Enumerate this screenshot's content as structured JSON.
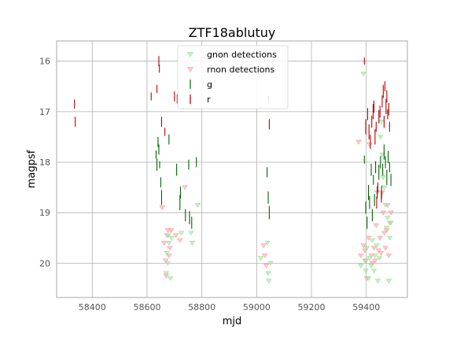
{
  "chart_data": {
    "type": "scatter",
    "title": "ZTF18ablutuy",
    "xlabel": "mjd",
    "ylabel": "magpsf",
    "xlim": [
      58270,
      59550
    ],
    "ylim": [
      20.68,
      15.6
    ],
    "y_inverted": true,
    "grid": true,
    "legend_position": "top-center",
    "xticks": [
      "58400",
      "58600",
      "58800",
      "59000",
      "59200",
      "59400"
    ],
    "xtick_values": [
      58400,
      58600,
      58800,
      59000,
      59200,
      59400
    ],
    "yticks": [
      "16",
      "17",
      "18",
      "19",
      "20"
    ],
    "ytick_values": [
      16,
      17,
      18,
      19,
      20
    ],
    "colors": {
      "g": "#006400",
      "r": "#bb0000",
      "g_nondet": "#9be29b",
      "r_nondet": "#ff9e9e"
    },
    "legend": [
      {
        "label": "gnon detections",
        "key": "g_nondet"
      },
      {
        "label": "rnon detections",
        "key": "r_nondet"
      },
      {
        "label": "g",
        "key": "g"
      },
      {
        "label": "r",
        "key": "r"
      }
    ],
    "series": [
      {
        "name": "r",
        "marker": "errorbar",
        "points": [
          [
            58335,
            16.85,
            0.09
          ],
          [
            58338,
            17.2,
            0.1
          ],
          [
            58615,
            16.7,
            0.08
          ],
          [
            58636,
            16.55,
            0.08
          ],
          [
            58643,
            16.0,
            0.1
          ],
          [
            58645,
            16.15,
            0.08
          ],
          [
            58653,
            17.2,
            0.1
          ],
          [
            58665,
            17.4,
            0.08
          ],
          [
            58700,
            16.7,
            0.1
          ],
          [
            58710,
            16.75,
            0.09
          ],
          [
            58760,
            16.8,
            0.1
          ],
          [
            59043,
            16.75,
            0.06
          ],
          [
            59046,
            17.25,
            0.1
          ],
          [
            59393,
            16.0,
            0.07
          ],
          [
            59398,
            17.3,
            0.15
          ],
          [
            59405,
            17.05,
            0.12
          ],
          [
            59410,
            17.4,
            0.15
          ],
          [
            59415,
            17.6,
            0.14
          ],
          [
            59420,
            17.2,
            0.12
          ],
          [
            59425,
            17.0,
            0.15
          ],
          [
            59428,
            16.9,
            0.12
          ],
          [
            59432,
            17.5,
            0.15
          ],
          [
            59436,
            17.3,
            0.1
          ],
          [
            59438,
            18.8,
            0.12
          ],
          [
            59442,
            18.5,
            0.1
          ],
          [
            59446,
            17.1,
            0.13
          ],
          [
            59450,
            17.0,
            0.12
          ],
          [
            59455,
            18.7,
            0.1
          ],
          [
            59458,
            16.8,
            0.12
          ],
          [
            59462,
            16.6,
            0.13
          ],
          [
            59465,
            17.2,
            0.12
          ],
          [
            59468,
            16.5,
            0.1
          ],
          [
            59472,
            16.9,
            0.15
          ],
          [
            59475,
            16.7,
            0.12
          ],
          [
            59478,
            17.05,
            0.1
          ],
          [
            59482,
            16.95,
            0.12
          ],
          [
            59485,
            17.3,
            0.1
          ]
        ]
      },
      {
        "name": "g",
        "marker": "errorbar",
        "points": [
          [
            58633,
            17.85,
            0.08
          ],
          [
            58636,
            18.05,
            0.12
          ],
          [
            58640,
            17.6,
            0.1
          ],
          [
            58643,
            17.75,
            0.1
          ],
          [
            58646,
            18.05,
            0.07
          ],
          [
            58650,
            18.4,
            0.1
          ],
          [
            58653,
            18.7,
            0.15
          ],
          [
            58680,
            17.55,
            0.1
          ],
          [
            58708,
            18.15,
            0.12
          ],
          [
            58720,
            18.8,
            0.15
          ],
          [
            58722,
            18.6,
            0.12
          ],
          [
            58740,
            19.05,
            0.12
          ],
          [
            58752,
            18.05,
            0.1
          ],
          [
            58755,
            19.1,
            0.13
          ],
          [
            58763,
            19.2,
            0.12
          ],
          [
            58780,
            18.0,
            0.1
          ],
          [
            59038,
            18.2,
            0.1
          ],
          [
            59042,
            18.7,
            0.12
          ],
          [
            59046,
            19.0,
            0.13
          ],
          [
            59393,
            17.95,
            0.08
          ],
          [
            59398,
            18.9,
            0.12
          ],
          [
            59403,
            19.2,
            0.12
          ],
          [
            59408,
            18.6,
            0.15
          ],
          [
            59412,
            18.8,
            0.13
          ],
          [
            59418,
            18.15,
            0.12
          ],
          [
            59422,
            19.05,
            0.12
          ],
          [
            59426,
            18.35,
            0.1
          ],
          [
            59430,
            18.75,
            0.12
          ],
          [
            59434,
            18.1,
            0.12
          ],
          [
            59440,
            18.6,
            0.12
          ],
          [
            59446,
            18.2,
            0.15
          ],
          [
            59452,
            18.0,
            0.12
          ],
          [
            59456,
            18.6,
            0.13
          ],
          [
            59460,
            18.15,
            0.12
          ],
          [
            59465,
            17.8,
            0.15
          ],
          [
            59470,
            18.0,
            0.12
          ],
          [
            59475,
            18.3,
            0.15
          ],
          [
            59480,
            17.9,
            0.12
          ],
          [
            59485,
            18.1,
            0.1
          ],
          [
            59490,
            18.35,
            0.12
          ]
        ]
      },
      {
        "name": "gnon detections",
        "marker": "triangle-down",
        "points": [
          [
            58670,
            20.2
          ],
          [
            58672,
            19.8
          ],
          [
            58675,
            20.0
          ],
          [
            58678,
            19.45
          ],
          [
            58680,
            19.6
          ],
          [
            58685,
            20.3
          ],
          [
            58690,
            19.5
          ],
          [
            58725,
            19.4
          ],
          [
            58760,
            19.4
          ],
          [
            58765,
            19.6
          ],
          [
            58785,
            18.85
          ],
          [
            59015,
            19.9
          ],
          [
            59040,
            19.6
          ],
          [
            59042,
            20.2
          ],
          [
            59044,
            20.35
          ],
          [
            59050,
            20.0
          ],
          [
            59380,
            20.05
          ],
          [
            59390,
            16.25
          ],
          [
            59395,
            19.95
          ],
          [
            59398,
            20.15
          ],
          [
            59402,
            19.7
          ],
          [
            59408,
            20.3
          ],
          [
            59412,
            19.9
          ],
          [
            59418,
            20.05
          ],
          [
            59422,
            19.55
          ],
          [
            59428,
            20.15
          ],
          [
            59432,
            19.85
          ],
          [
            59438,
            19.65
          ],
          [
            59442,
            20.35
          ],
          [
            59448,
            19.9
          ],
          [
            59452,
            17.5
          ],
          [
            59455,
            17.2
          ],
          [
            59458,
            17.85
          ],
          [
            59462,
            18.3
          ],
          [
            59466,
            18.5
          ],
          [
            59470,
            18.85
          ],
          [
            59474,
            19.3
          ],
          [
            59478,
            19.1
          ],
          [
            59482,
            20.35
          ],
          [
            59486,
            19.5
          ],
          [
            59490,
            19.2
          ]
        ]
      },
      {
        "name": "rnon detections",
        "marker": "triangle-down",
        "points": [
          [
            58655,
            18.9
          ],
          [
            58662,
            19.6
          ],
          [
            58668,
            19.95
          ],
          [
            58670,
            20.25
          ],
          [
            58673,
            19.45
          ],
          [
            58676,
            19.35
          ],
          [
            58680,
            19.85
          ],
          [
            58683,
            19.7
          ],
          [
            58688,
            19.35
          ],
          [
            58705,
            19.45
          ],
          [
            58720,
            19.55
          ],
          [
            58738,
            18.5
          ],
          [
            59025,
            19.65
          ],
          [
            59030,
            19.85
          ],
          [
            59035,
            20.05
          ],
          [
            59372,
            17.6
          ],
          [
            59380,
            19.85
          ],
          [
            59390,
            19.65
          ],
          [
            59395,
            19.75
          ],
          [
            59398,
            19.95
          ],
          [
            59402,
            20.3
          ],
          [
            59408,
            19.5
          ],
          [
            59412,
            17.65
          ],
          [
            59418,
            19.85
          ],
          [
            59422,
            20.0
          ],
          [
            59428,
            19.7
          ],
          [
            59432,
            19.95
          ],
          [
            59436,
            19.25
          ],
          [
            59440,
            18.6
          ],
          [
            59445,
            19.75
          ],
          [
            59450,
            19.5
          ],
          [
            59454,
            19.8
          ],
          [
            59458,
            18.6
          ],
          [
            59462,
            19.0
          ],
          [
            59466,
            19.4
          ],
          [
            59470,
            19.7
          ],
          [
            59474,
            19.35
          ],
          [
            59478,
            18.85
          ],
          [
            59482,
            19.85
          ],
          [
            59486,
            19.2
          ],
          [
            59490,
            19.0
          ]
        ]
      }
    ]
  }
}
